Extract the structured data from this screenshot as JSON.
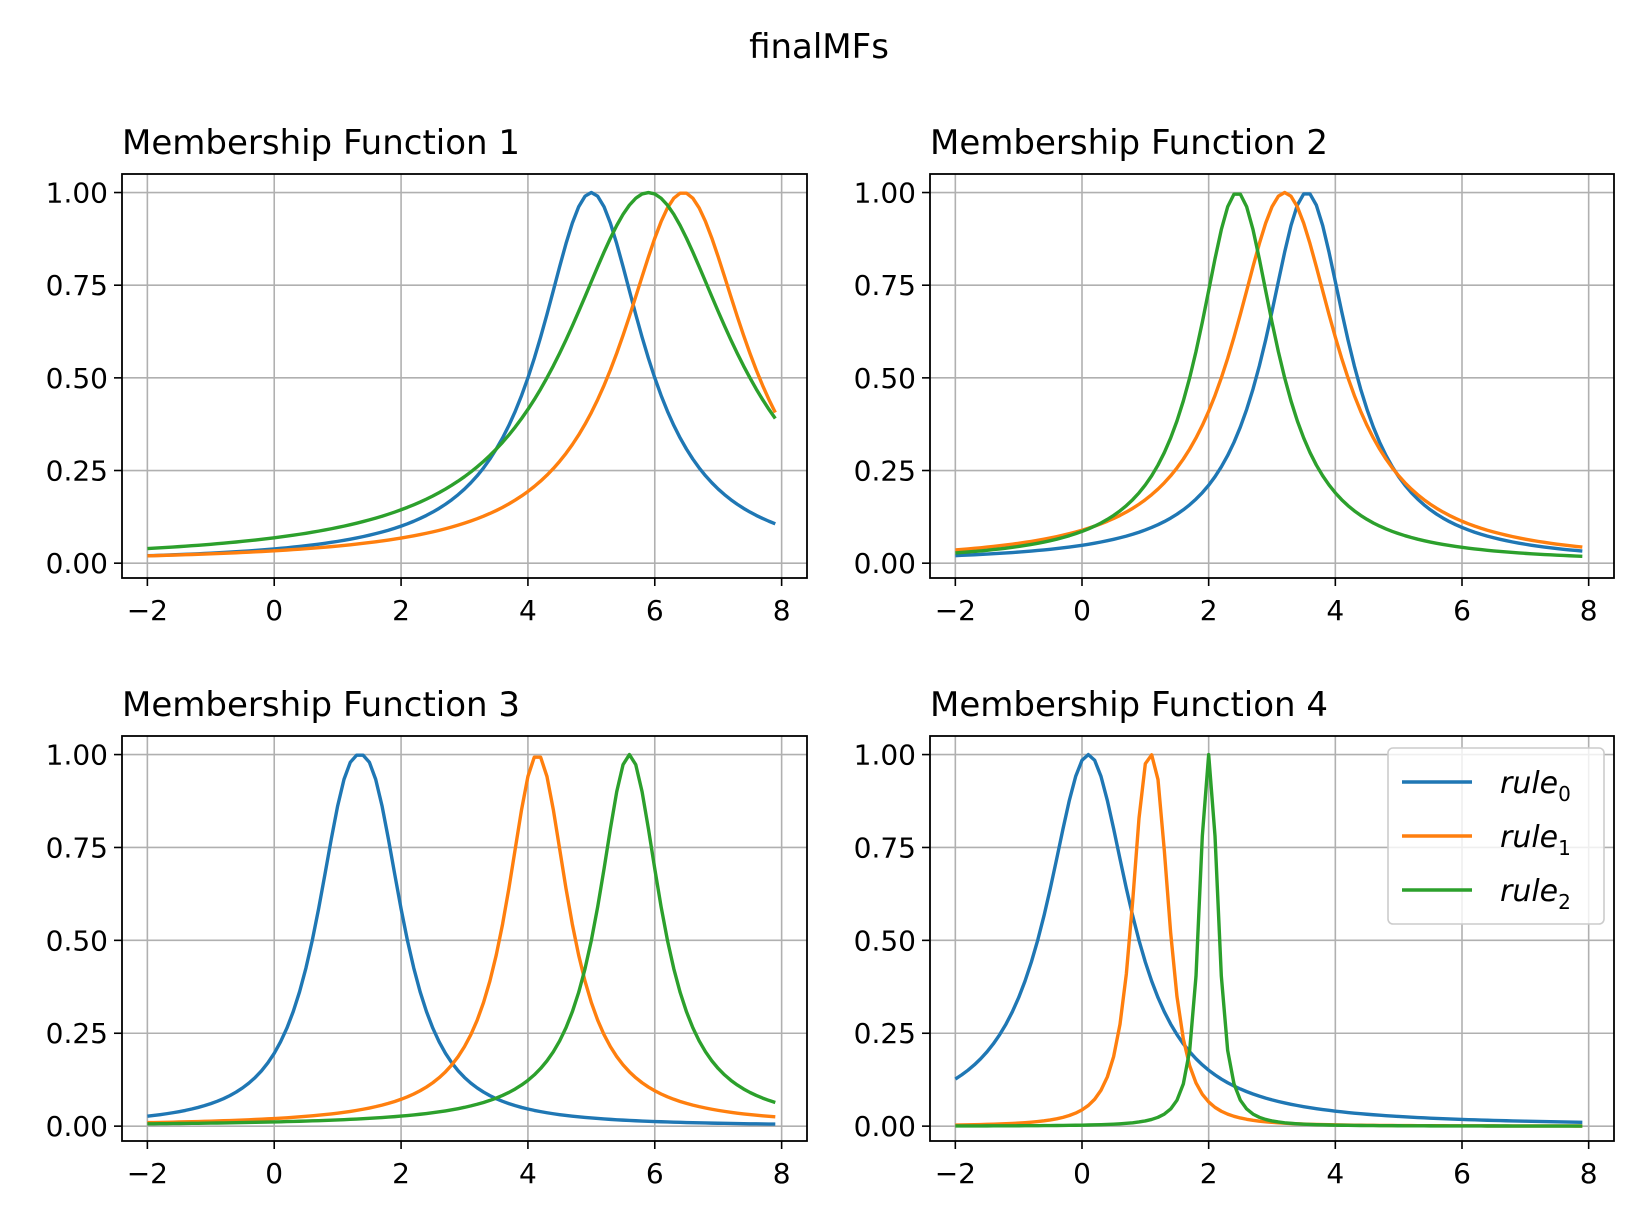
{
  "figure": {
    "title": "finalMFs"
  },
  "legend": {
    "placement": "upper-right of Membership Function 4",
    "entries": [
      {
        "base": "rule",
        "sub": "0",
        "color": "#1f77b4"
      },
      {
        "base": "rule",
        "sub": "1",
        "color": "#ff7f0e"
      },
      {
        "base": "rule",
        "sub": "2",
        "color": "#2ca02c"
      }
    ]
  },
  "chart_data": [
    {
      "type": "line",
      "title": "Membership Function 1",
      "xlabel": "",
      "ylabel": "",
      "xlim": [
        -2.4,
        8.4
      ],
      "ylim": [
        -0.04,
        1.05
      ],
      "xticks": [
        -2,
        0,
        2,
        4,
        6,
        8
      ],
      "xtick_labels": [
        "−2",
        "0",
        "2",
        "4",
        "6",
        "8"
      ],
      "yticks": [
        0,
        0.25,
        0.5,
        0.75,
        1
      ],
      "ytick_labels": [
        "0.00",
        "0.25",
        "0.50",
        "0.75",
        "1.00"
      ],
      "grid": true,
      "series": [
        {
          "name": "rule0",
          "color": "#1f77b4",
          "a": 1.0,
          "b": 1.0,
          "c": 5.0,
          "x_range": [
            -2,
            7.9
          ]
        },
        {
          "name": "rule1",
          "color": "#ff7f0e",
          "a": 1.2,
          "b": 1.0,
          "c": 6.45,
          "x_range": [
            -2,
            7.9
          ]
        },
        {
          "name": "rule2",
          "color": "#2ca02c",
          "a": 1.6,
          "b": 1.0,
          "c": 5.9,
          "x_range": [
            -2,
            7.9
          ]
        }
      ]
    },
    {
      "type": "line",
      "title": "Membership Function 2",
      "xlabel": "",
      "ylabel": "",
      "xlim": [
        -2.4,
        8.4
      ],
      "ylim": [
        -0.04,
        1.05
      ],
      "xticks": [
        -2,
        0,
        2,
        4,
        6,
        8
      ],
      "xtick_labels": [
        "−2",
        "0",
        "2",
        "4",
        "6",
        "8"
      ],
      "yticks": [
        0,
        0.25,
        0.5,
        0.75,
        1
      ],
      "ytick_labels": [
        "0.00",
        "0.25",
        "0.50",
        "0.75",
        "1.00"
      ],
      "grid": true,
      "series": [
        {
          "name": "rule0",
          "color": "#1f77b4",
          "a": 0.8,
          "b": 1.0,
          "c": 3.55,
          "x_range": [
            -2,
            7.9
          ]
        },
        {
          "name": "rule1",
          "color": "#ff7f0e",
          "a": 1.0,
          "b": 1.0,
          "c": 3.2,
          "x_range": [
            -2,
            7.9
          ]
        },
        {
          "name": "rule2",
          "color": "#2ca02c",
          "a": 0.75,
          "b": 1.0,
          "c": 2.45,
          "x_range": [
            -2,
            7.9
          ]
        }
      ]
    },
    {
      "type": "line",
      "title": "Membership Function 3",
      "xlabel": "",
      "ylabel": "",
      "xlim": [
        -2.4,
        8.4
      ],
      "ylim": [
        -0.04,
        1.05
      ],
      "xticks": [
        -2,
        0,
        2,
        4,
        6,
        8
      ],
      "xtick_labels": [
        "−2",
        "0",
        "2",
        "4",
        "6",
        "8"
      ],
      "yticks": [
        0,
        0.25,
        0.5,
        0.75,
        1
      ],
      "ytick_labels": [
        "0.00",
        "0.25",
        "0.50",
        "0.75",
        "1.00"
      ],
      "grid": true,
      "series": [
        {
          "name": "rule0",
          "color": "#1f77b4",
          "a": 0.75,
          "b": 1.2,
          "c": 1.35,
          "x_range": [
            -2,
            7.9
          ]
        },
        {
          "name": "rule1",
          "color": "#ff7f0e",
          "a": 0.6,
          "b": 1.0,
          "c": 4.15,
          "x_range": [
            -2,
            7.9
          ]
        },
        {
          "name": "rule2",
          "color": "#2ca02c",
          "a": 0.6,
          "b": 1.0,
          "c": 5.6,
          "x_range": [
            -2,
            7.9
          ]
        }
      ]
    },
    {
      "type": "line",
      "title": "Membership Function 4",
      "xlabel": "",
      "ylabel": "",
      "xlim": [
        -2.4,
        8.4
      ],
      "ylim": [
        -0.04,
        1.05
      ],
      "xticks": [
        -2,
        0,
        2,
        4,
        6,
        8
      ],
      "xtick_labels": [
        "−2",
        "0",
        "2",
        "4",
        "6",
        "8"
      ],
      "yticks": [
        0,
        0.25,
        0.5,
        0.75,
        1
      ],
      "ytick_labels": [
        "0.00",
        "0.25",
        "0.50",
        "0.75",
        "1.00"
      ],
      "grid": true,
      "series": [
        {
          "name": "rule0",
          "color": "#1f77b4",
          "a": 0.8,
          "b": 1.0,
          "c": 0.1,
          "x_range": [
            -2,
            7.9
          ]
        },
        {
          "name": "rule1",
          "color": "#ff7f0e",
          "a": 0.33,
          "b": 1.3,
          "c": 1.08,
          "x_range": [
            -2,
            7.9
          ]
        },
        {
          "name": "rule2",
          "color": "#2ca02c",
          "a": 0.17,
          "b": 1.2,
          "c": 2.0,
          "x_range": [
            -2,
            7.9
          ]
        }
      ]
    }
  ]
}
